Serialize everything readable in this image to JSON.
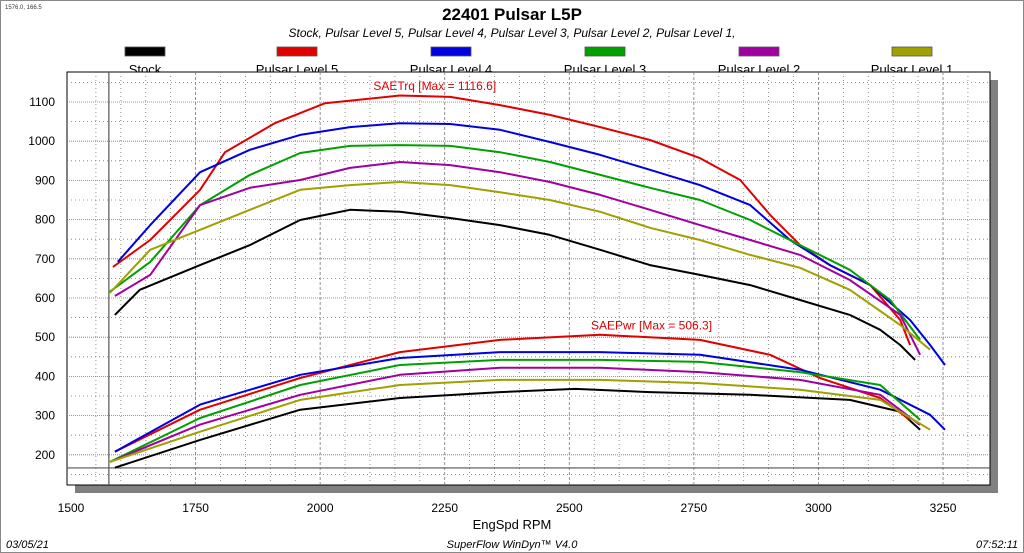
{
  "cursor_readout": "1576.0, 166.5",
  "footer": {
    "date": "03/05/21",
    "software": "SuperFlow WinDyn™ V4.0",
    "time": "07:52:11"
  },
  "chart_data": {
    "type": "line",
    "title": "22401 Pulsar L5P",
    "subtitle": "Stock, Pulsar Level 5, Pulsar Level 4, Pulsar Level 3, Pulsar Level 2, Pulsar Level 1,",
    "xlabel": "EngSpd RPM",
    "ylabel": "",
    "xlim": [
      1500,
      3340
    ],
    "ylim": [
      125,
      1175
    ],
    "xticks": [
      1500,
      1750,
      2000,
      2250,
      2500,
      2750,
      3000,
      3250
    ],
    "yticks": [
      200,
      300,
      400,
      500,
      600,
      700,
      800,
      900,
      1000,
      1100
    ],
    "grid": true,
    "legend": "top",
    "cursor": {
      "x": 1576.0,
      "y": 166.5
    },
    "annotations": [
      {
        "text": "SAETrq [Max = 1116.6]",
        "color": "#e00000",
        "x": 2230,
        "y": 1130
      },
      {
        "text": "SAEPwr [Max = 506.3]",
        "color": "#e00000",
        "x": 2665,
        "y": 520
      }
    ],
    "series": [
      {
        "name": "Stock",
        "color": "#000000",
        "torque": [
          [
            1588,
            557
          ],
          [
            1638,
            621
          ],
          [
            1759,
            684
          ],
          [
            1859,
            735
          ],
          [
            1960,
            799
          ],
          [
            2060,
            825
          ],
          [
            2160,
            820
          ],
          [
            2261,
            804
          ],
          [
            2361,
            786
          ],
          [
            2461,
            761
          ],
          [
            2562,
            723
          ],
          [
            2662,
            684
          ],
          [
            2762,
            659
          ],
          [
            2863,
            633
          ],
          [
            2963,
            595
          ],
          [
            3063,
            557
          ],
          [
            3124,
            519
          ],
          [
            3164,
            480
          ],
          [
            3194,
            442
          ]
        ],
        "power": [
          [
            1588,
            167
          ],
          [
            1759,
            238
          ],
          [
            1960,
            315
          ],
          [
            2160,
            345
          ],
          [
            2361,
            360
          ],
          [
            2512,
            368
          ],
          [
            2662,
            360
          ],
          [
            2863,
            353
          ],
          [
            3063,
            340
          ],
          [
            3164,
            310
          ],
          [
            3204,
            264
          ]
        ]
      },
      {
        "name": "Pulsar Level 5",
        "color": "#e00000",
        "torque": [
          [
            1584,
            679
          ],
          [
            1659,
            748
          ],
          [
            1759,
            876
          ],
          [
            1809,
            972
          ],
          [
            1909,
            1046
          ],
          [
            2010,
            1097
          ],
          [
            2160,
            1116.6
          ],
          [
            2261,
            1113
          ],
          [
            2361,
            1092
          ],
          [
            2461,
            1067
          ],
          [
            2562,
            1036
          ],
          [
            2662,
            1003
          ],
          [
            2762,
            957
          ],
          [
            2843,
            901
          ],
          [
            2903,
            812
          ],
          [
            2963,
            735
          ],
          [
            3023,
            684
          ],
          [
            3104,
            633
          ],
          [
            3164,
            544
          ],
          [
            3184,
            480
          ]
        ],
        "power": [
          [
            1588,
            208
          ],
          [
            1759,
            315
          ],
          [
            1960,
            396
          ],
          [
            2160,
            462
          ],
          [
            2361,
            493
          ],
          [
            2562,
            506.3
          ],
          [
            2762,
            493
          ],
          [
            2903,
            455
          ],
          [
            3003,
            396
          ],
          [
            3124,
            345
          ],
          [
            3184,
            289
          ]
        ]
      },
      {
        "name": "Pulsar Level 4",
        "color": "#0000e0",
        "torque": [
          [
            1594,
            692
          ],
          [
            1659,
            786
          ],
          [
            1759,
            921
          ],
          [
            1859,
            978
          ],
          [
            1960,
            1016
          ],
          [
            2060,
            1036
          ],
          [
            2160,
            1046
          ],
          [
            2261,
            1044
          ],
          [
            2361,
            1029
          ],
          [
            2461,
            998
          ],
          [
            2562,
            965
          ],
          [
            2662,
            927
          ],
          [
            2762,
            888
          ],
          [
            2863,
            837
          ],
          [
            2943,
            748
          ],
          [
            3023,
            684
          ],
          [
            3104,
            633
          ],
          [
            3184,
            544
          ],
          [
            3224,
            480
          ],
          [
            3254,
            429
          ]
        ],
        "power": [
          [
            1588,
            208
          ],
          [
            1759,
            328
          ],
          [
            1960,
            404
          ],
          [
            2160,
            447
          ],
          [
            2361,
            462
          ],
          [
            2562,
            462
          ],
          [
            2762,
            455
          ],
          [
            2963,
            417
          ],
          [
            3124,
            366
          ],
          [
            3224,
            302
          ],
          [
            3254,
            264
          ]
        ]
      },
      {
        "name": "Pulsar Level 3",
        "color": "#00a000",
        "torque": [
          [
            1578,
            616
          ],
          [
            1659,
            692
          ],
          [
            1759,
            837
          ],
          [
            1859,
            914
          ],
          [
            1960,
            970
          ],
          [
            2060,
            988
          ],
          [
            2160,
            990
          ],
          [
            2261,
            988
          ],
          [
            2361,
            972
          ],
          [
            2461,
            947
          ],
          [
            2562,
            914
          ],
          [
            2662,
            881
          ],
          [
            2762,
            850
          ],
          [
            2863,
            799
          ],
          [
            2963,
            735
          ],
          [
            3063,
            672
          ],
          [
            3144,
            595
          ],
          [
            3204,
            493
          ]
        ],
        "power": [
          [
            1578,
            182
          ],
          [
            1759,
            294
          ],
          [
            1960,
            378
          ],
          [
            2160,
            429
          ],
          [
            2361,
            442
          ],
          [
            2562,
            442
          ],
          [
            2762,
            437
          ],
          [
            2963,
            411
          ],
          [
            3124,
            378
          ],
          [
            3204,
            289
          ]
        ]
      },
      {
        "name": "Pulsar Level 2",
        "color": "#a000a0",
        "torque": [
          [
            1588,
            605
          ],
          [
            1659,
            659
          ],
          [
            1759,
            837
          ],
          [
            1859,
            881
          ],
          [
            1960,
            901
          ],
          [
            2060,
            932
          ],
          [
            2160,
            947
          ],
          [
            2261,
            939
          ],
          [
            2361,
            921
          ],
          [
            2461,
            896
          ],
          [
            2562,
            863
          ],
          [
            2662,
            825
          ],
          [
            2762,
            786
          ],
          [
            2863,
            748
          ],
          [
            2963,
            710
          ],
          [
            3063,
            646
          ],
          [
            3164,
            557
          ],
          [
            3204,
            455
          ]
        ],
        "power": [
          [
            1588,
            187
          ],
          [
            1759,
            277
          ],
          [
            1960,
            353
          ],
          [
            2160,
            404
          ],
          [
            2361,
            422
          ],
          [
            2562,
            422
          ],
          [
            2762,
            411
          ],
          [
            2963,
            391
          ],
          [
            3124,
            353
          ],
          [
            3204,
            276
          ]
        ]
      },
      {
        "name": "Pulsar Level 1",
        "color": "#a0a000",
        "torque": [
          [
            1578,
            613
          ],
          [
            1659,
            723
          ],
          [
            1759,
            774
          ],
          [
            1859,
            825
          ],
          [
            1960,
            876
          ],
          [
            2060,
            888
          ],
          [
            2160,
            896
          ],
          [
            2261,
            888
          ],
          [
            2361,
            870
          ],
          [
            2461,
            850
          ],
          [
            2562,
            820
          ],
          [
            2662,
            779
          ],
          [
            2762,
            748
          ],
          [
            2863,
            710
          ],
          [
            2963,
            677
          ],
          [
            3063,
            621
          ],
          [
            3164,
            531
          ],
          [
            3224,
            468
          ]
        ],
        "power": [
          [
            1578,
            182
          ],
          [
            1759,
            259
          ],
          [
            1960,
            340
          ],
          [
            2160,
            378
          ],
          [
            2361,
            391
          ],
          [
            2562,
            391
          ],
          [
            2762,
            383
          ],
          [
            2963,
            366
          ],
          [
            3124,
            340
          ],
          [
            3224,
            264
          ]
        ]
      }
    ]
  }
}
